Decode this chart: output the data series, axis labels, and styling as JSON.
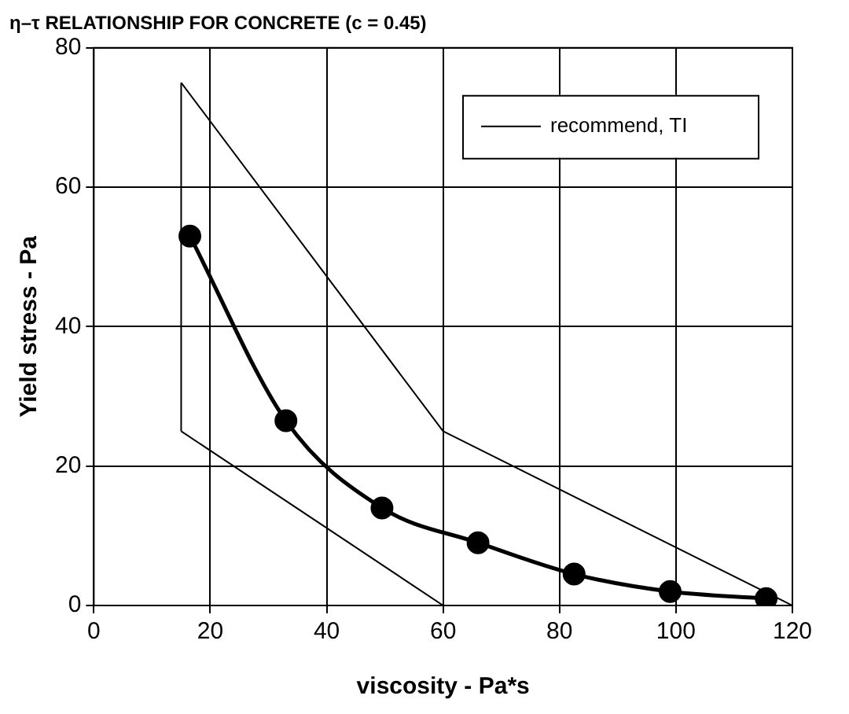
{
  "chart_data": {
    "type": "line",
    "title": "η–τ RELATIONSHIP FOR CONCRETE (c = 0.45)",
    "xlabel": "viscosity - Pa*s",
    "ylabel": "Yield stress - Pa",
    "xlim": [
      0,
      120
    ],
    "xticks": [
      0,
      20,
      40,
      60,
      80,
      100,
      120
    ],
    "ylim": [
      0,
      80
    ],
    "yticks": [
      0,
      20,
      40,
      60,
      80
    ],
    "grid": true,
    "legend": "top right",
    "series": [
      {
        "name": "recommend, TI",
        "color": "#000000",
        "marker": "none",
        "x": [
          15,
          60,
          120
        ],
        "values": [
          75,
          25,
          0
        ]
      },
      {
        "color": "#000000",
        "marker": "none",
        "x": [
          15,
          60,
          120
        ],
        "values": [
          25,
          0,
          0
        ]
      },
      {
        "color": "#000000",
        "marker": "none",
        "x": [
          15,
          15
        ],
        "values": [
          25,
          75
        ]
      },
      {
        "color": "#000000",
        "marker": "circle",
        "x": [
          16.5,
          33,
          49.5,
          66,
          82.5,
          99,
          115.5
        ],
        "values": [
          53,
          26.5,
          14,
          9,
          4.5,
          2,
          1
        ]
      }
    ]
  }
}
